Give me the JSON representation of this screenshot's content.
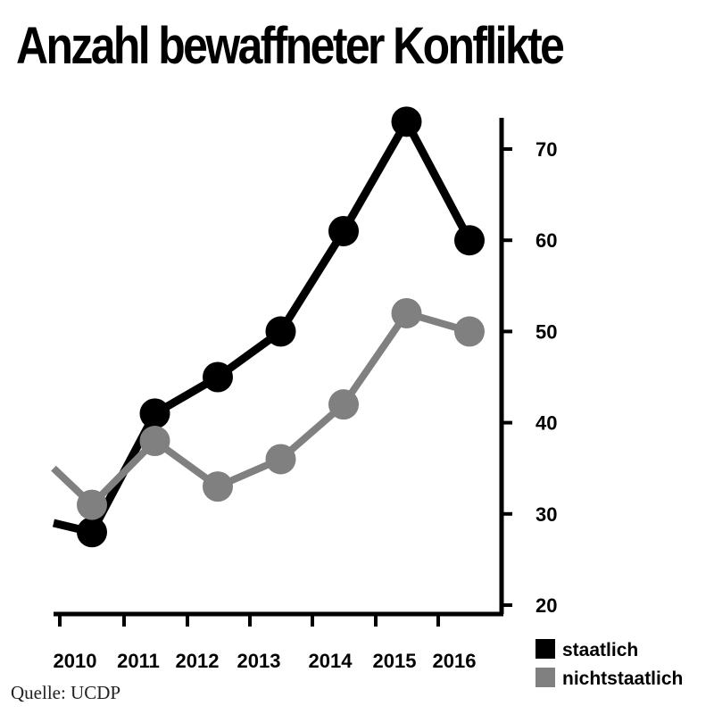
{
  "chart_data": {
    "type": "line",
    "title": "Anzahl bewaffneter Konflikte",
    "x": [
      2010,
      2011,
      2012,
      2013,
      2014,
      2015,
      2016
    ],
    "x_tick_labels": [
      "2010",
      "2011",
      "2012",
      "2013",
      "2014",
      "2015",
      "2016"
    ],
    "series": [
      {
        "name": "staatlich",
        "color": "#000000",
        "values": [
          28,
          41,
          45,
          50,
          61,
          73,
          60
        ],
        "start_value": 29
      },
      {
        "name": "nichtstaatlich",
        "color": "#808080",
        "values": [
          31,
          38,
          33,
          36,
          42,
          52,
          50
        ],
        "start_value": 35
      }
    ],
    "y_ticks": [
      20,
      30,
      40,
      50,
      60,
      70
    ],
    "ylim": [
      19,
      73
    ],
    "y_axis_position": "right",
    "grid": false,
    "legend": "bottom-right",
    "source": "Quelle:  UCDP"
  }
}
